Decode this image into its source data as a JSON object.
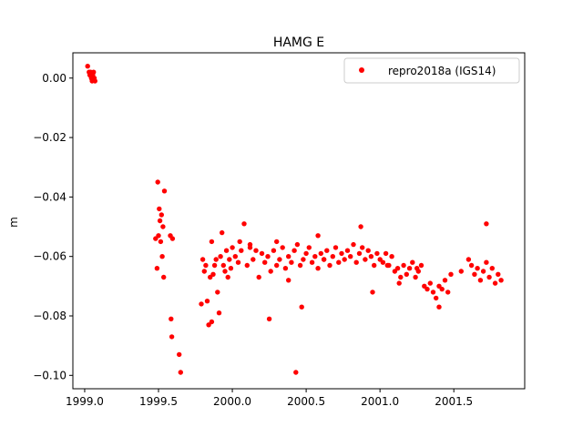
{
  "chart_data": {
    "type": "scatter",
    "title": "HAMG E",
    "xlabel": "",
    "ylabel": "m",
    "xlim": [
      1998.92,
      2001.98
    ],
    "ylim": [
      -0.1045,
      0.0085
    ],
    "xticks": [
      1999.0,
      1999.5,
      2000.0,
      2000.5,
      2001.0,
      2001.5
    ],
    "xtick_labels": [
      "1999.0",
      "1999.5",
      "2000.0",
      "2000.5",
      "2001.0",
      "2001.5"
    ],
    "yticks": [
      0.0,
      -0.02,
      -0.04,
      -0.06,
      -0.08,
      -0.1
    ],
    "ytick_labels": [
      "0.00",
      "−0.02",
      "−0.04",
      "−0.06",
      "−0.08",
      "−0.10"
    ],
    "grid": false,
    "legend_position": "top-right",
    "series": [
      {
        "name": "repro2018a (IGS14)",
        "color": "#ff0000",
        "marker": "circle",
        "x": [
          1999.02,
          1999.03,
          1999.035,
          1999.04,
          1999.045,
          1999.05,
          1999.055,
          1999.06,
          1999.065,
          1999.07,
          1999.48,
          1999.49,
          1999.495,
          1999.5,
          1999.505,
          1999.51,
          1999.515,
          1999.52,
          1999.525,
          1999.53,
          1999.535,
          1999.54,
          1999.58,
          1999.585,
          1999.59,
          1999.595,
          1999.64,
          1999.65,
          1999.79,
          1999.8,
          1999.81,
          1999.82,
          1999.83,
          1999.84,
          1999.85,
          1999.86,
          1999.87,
          1999.88,
          1999.89,
          1999.9,
          1999.91,
          1999.92,
          1999.93,
          1999.94,
          1999.95,
          1999.96,
          1999.97,
          1999.98,
          1999.99,
          2000.0,
          2000.02,
          2000.04,
          2000.06,
          2000.08,
          2000.1,
          2000.12,
          2000.14,
          2000.16,
          2000.18,
          2000.2,
          2000.22,
          2000.24,
          2000.26,
          2000.28,
          2000.3,
          2000.32,
          2000.34,
          2000.36,
          2000.38,
          2000.4,
          2000.42,
          2000.44,
          2000.46,
          2000.48,
          2000.5,
          2000.52,
          2000.54,
          2000.56,
          2000.58,
          2000.6,
          2000.62,
          2000.64,
          2000.66,
          2000.68,
          2000.7,
          2000.72,
          2000.74,
          2000.76,
          2000.78,
          2000.8,
          2000.82,
          2000.84,
          2000.86,
          2000.88,
          2000.9,
          2000.92,
          2000.94,
          2000.96,
          2000.98,
          2001.0,
          2001.02,
          2001.04,
          2001.06,
          2001.08,
          2001.1,
          2001.12,
          2001.14,
          2001.16,
          2001.18,
          2001.2,
          2001.22,
          2001.24,
          2001.26,
          2001.28,
          2001.3,
          2001.32,
          2001.34,
          2001.36,
          2001.38,
          2001.4,
          2001.42,
          2001.44,
          2001.46,
          2001.48,
          2001.55,
          2001.6,
          2001.62,
          2001.64,
          2001.66,
          2001.68,
          2001.7,
          2001.72,
          2001.74,
          2001.76,
          2001.78,
          2001.8,
          2001.82,
          2000.25,
          2000.43,
          2000.87,
          2000.95,
          2001.13,
          2001.4,
          2001.72,
          2000.47,
          2000.3,
          2000.05,
          2000.62,
          2001.25,
          2000.12,
          1999.86,
          2000.58,
          2000.38,
          2001.05
        ],
        "y": [
          0.004,
          0.002,
          0.001,
          0.002,
          0.0,
          -0.001,
          0.001,
          0.002,
          0.0,
          -0.001,
          -0.054,
          -0.064,
          -0.035,
          -0.053,
          -0.044,
          -0.048,
          -0.055,
          -0.046,
          -0.06,
          -0.05,
          -0.067,
          -0.038,
          -0.053,
          -0.081,
          -0.087,
          -0.054,
          -0.093,
          -0.099,
          -0.076,
          -0.061,
          -0.065,
          -0.063,
          -0.075,
          -0.083,
          -0.067,
          -0.055,
          -0.066,
          -0.063,
          -0.061,
          -0.072,
          -0.079,
          -0.06,
          -0.052,
          -0.063,
          -0.065,
          -0.058,
          -0.067,
          -0.061,
          -0.064,
          -0.057,
          -0.06,
          -0.062,
          -0.058,
          -0.049,
          -0.063,
          -0.056,
          -0.061,
          -0.058,
          -0.067,
          -0.059,
          -0.062,
          -0.06,
          -0.065,
          -0.058,
          -0.063,
          -0.061,
          -0.057,
          -0.064,
          -0.06,
          -0.062,
          -0.058,
          -0.056,
          -0.063,
          -0.061,
          -0.059,
          -0.057,
          -0.062,
          -0.06,
          -0.064,
          -0.059,
          -0.061,
          -0.058,
          -0.063,
          -0.06,
          -0.057,
          -0.062,
          -0.059,
          -0.061,
          -0.058,
          -0.06,
          -0.056,
          -0.062,
          -0.059,
          -0.057,
          -0.061,
          -0.058,
          -0.06,
          -0.063,
          -0.059,
          -0.061,
          -0.062,
          -0.059,
          -0.063,
          -0.06,
          -0.065,
          -0.064,
          -0.067,
          -0.063,
          -0.066,
          -0.064,
          -0.062,
          -0.067,
          -0.065,
          -0.063,
          -0.07,
          -0.071,
          -0.069,
          -0.072,
          -0.074,
          -0.07,
          -0.071,
          -0.068,
          -0.072,
          -0.066,
          -0.065,
          -0.061,
          -0.063,
          -0.066,
          -0.064,
          -0.068,
          -0.065,
          -0.062,
          -0.067,
          -0.064,
          -0.069,
          -0.066,
          -0.068,
          -0.081,
          -0.099,
          -0.05,
          -0.072,
          -0.069,
          -0.077,
          -0.049,
          -0.077,
          -0.055,
          -0.055,
          -0.061,
          -0.064,
          -0.057,
          -0.082,
          -0.053,
          -0.068,
          -0.063
        ]
      }
    ]
  }
}
